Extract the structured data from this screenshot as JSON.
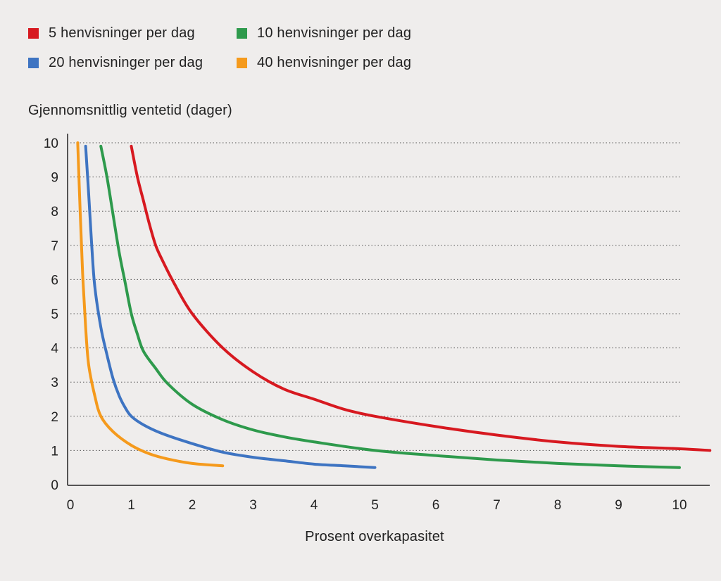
{
  "chart_data": {
    "type": "line",
    "title": "",
    "xlabel": "Prosent overkapasitet",
    "ylabel": "Gjennomsnittlig ventetid (dager)",
    "xlim": [
      0,
      10.5
    ],
    "ylim": [
      0,
      10
    ],
    "xticks": [
      "0",
      "1",
      "2",
      "3",
      "4",
      "5",
      "6",
      "7",
      "8",
      "9",
      "10"
    ],
    "yticks": [
      "0",
      "1",
      "2",
      "3",
      "4",
      "5",
      "6",
      "7",
      "8",
      "9",
      "10"
    ],
    "grid": "horizontal-dotted",
    "legend_position": "top-left",
    "series": [
      {
        "name": "5 henvisninger per dag",
        "color": "#d71920",
        "points": [
          [
            1.0,
            9.9
          ],
          [
            1.1,
            9.0
          ],
          [
            1.2,
            8.3
          ],
          [
            1.3,
            7.6
          ],
          [
            1.4,
            7.0
          ],
          [
            1.5,
            6.6
          ],
          [
            1.7,
            5.9
          ],
          [
            2.0,
            5.0
          ],
          [
            2.5,
            4.0
          ],
          [
            3.0,
            3.3
          ],
          [
            3.5,
            2.8
          ],
          [
            4.0,
            2.5
          ],
          [
            4.5,
            2.2
          ],
          [
            5.0,
            2.0
          ],
          [
            6.0,
            1.7
          ],
          [
            7.0,
            1.45
          ],
          [
            8.0,
            1.25
          ],
          [
            9.0,
            1.12
          ],
          [
            10.0,
            1.05
          ],
          [
            10.5,
            1.0
          ]
        ]
      },
      {
        "name": "10 henvisninger per dag",
        "color": "#2e9a4c",
        "points": [
          [
            0.5,
            9.9
          ],
          [
            0.6,
            9.0
          ],
          [
            0.7,
            7.9
          ],
          [
            0.8,
            6.8
          ],
          [
            0.9,
            5.9
          ],
          [
            1.0,
            5.0
          ],
          [
            1.1,
            4.4
          ],
          [
            1.2,
            3.9
          ],
          [
            1.4,
            3.4
          ],
          [
            1.6,
            2.95
          ],
          [
            2.0,
            2.35
          ],
          [
            2.5,
            1.9
          ],
          [
            3.0,
            1.6
          ],
          [
            3.5,
            1.4
          ],
          [
            4.0,
            1.25
          ],
          [
            5.0,
            1.0
          ],
          [
            6.0,
            0.85
          ],
          [
            7.0,
            0.72
          ],
          [
            8.0,
            0.62
          ],
          [
            9.0,
            0.55
          ],
          [
            10.0,
            0.5
          ]
        ]
      },
      {
        "name": "20 henvisninger per dag",
        "color": "#3e74c2",
        "points": [
          [
            0.25,
            9.9
          ],
          [
            0.3,
            8.5
          ],
          [
            0.35,
            7.0
          ],
          [
            0.4,
            5.8
          ],
          [
            0.5,
            4.6
          ],
          [
            0.6,
            3.8
          ],
          [
            0.7,
            3.1
          ],
          [
            0.8,
            2.6
          ],
          [
            0.9,
            2.25
          ],
          [
            1.0,
            2.0
          ],
          [
            1.2,
            1.75
          ],
          [
            1.5,
            1.5
          ],
          [
            2.0,
            1.2
          ],
          [
            2.5,
            0.95
          ],
          [
            3.0,
            0.8
          ],
          [
            3.5,
            0.7
          ],
          [
            4.0,
            0.6
          ],
          [
            4.5,
            0.55
          ],
          [
            5.0,
            0.5
          ]
        ]
      },
      {
        "name": "40 henvisninger per dag",
        "color": "#f59a1c",
        "points": [
          [
            0.12,
            10.0
          ],
          [
            0.16,
            8.0
          ],
          [
            0.2,
            6.2
          ],
          [
            0.25,
            4.6
          ],
          [
            0.3,
            3.5
          ],
          [
            0.4,
            2.6
          ],
          [
            0.5,
            2.0
          ],
          [
            0.7,
            1.55
          ],
          [
            1.0,
            1.15
          ],
          [
            1.3,
            0.9
          ],
          [
            1.6,
            0.75
          ],
          [
            2.0,
            0.62
          ],
          [
            2.5,
            0.55
          ]
        ]
      }
    ]
  }
}
